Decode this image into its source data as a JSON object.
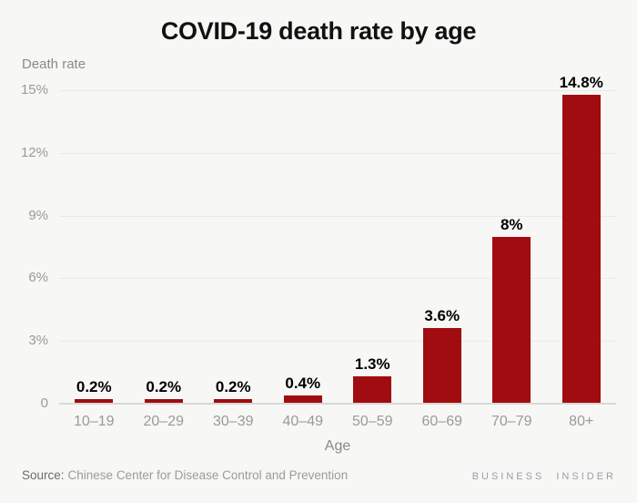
{
  "chart_data": {
    "type": "bar",
    "title": "COVID-19 death rate by age",
    "ylabel": "Death rate",
    "xlabel": "Age",
    "categories": [
      "10–19",
      "20–29",
      "30–39",
      "40–49",
      "50–59",
      "60–69",
      "70–79",
      "80+"
    ],
    "values": [
      0.2,
      0.2,
      0.2,
      0.4,
      1.3,
      3.6,
      8,
      14.8
    ],
    "value_labels": [
      "0.2%",
      "0.2%",
      "0.2%",
      "0.4%",
      "1.3%",
      "3.6%",
      "8%",
      "14.8%"
    ],
    "yticks": [
      {
        "value": 15,
        "label": "15%"
      },
      {
        "value": 12,
        "label": "12%"
      },
      {
        "value": 9,
        "label": "9%"
      },
      {
        "value": 6,
        "label": "6%"
      },
      {
        "value": 3,
        "label": "3%"
      },
      {
        "value": 0,
        "label": "0"
      }
    ],
    "ylim": [
      0,
      15
    ],
    "grid": true,
    "legend": "none",
    "bar_color": "#a00c0f"
  },
  "footer": {
    "source_prefix": "Source:",
    "source_text": "Chinese Center for Disease Control and Prevention",
    "brand": "BUSINESS INSIDER"
  },
  "colors": {
    "background": "#f7f7f5",
    "bar_color": "#a00c0f",
    "grid": "#eaeae8",
    "axis": "#d7d7d5",
    "title": "#111111",
    "tick": "#9a9a9a",
    "axis_label": "#8a8a8a",
    "data_label": "#000000",
    "source_prefix": "#6b6b6b",
    "source": "#9b9b9b",
    "brand": "#9aa0a3"
  }
}
